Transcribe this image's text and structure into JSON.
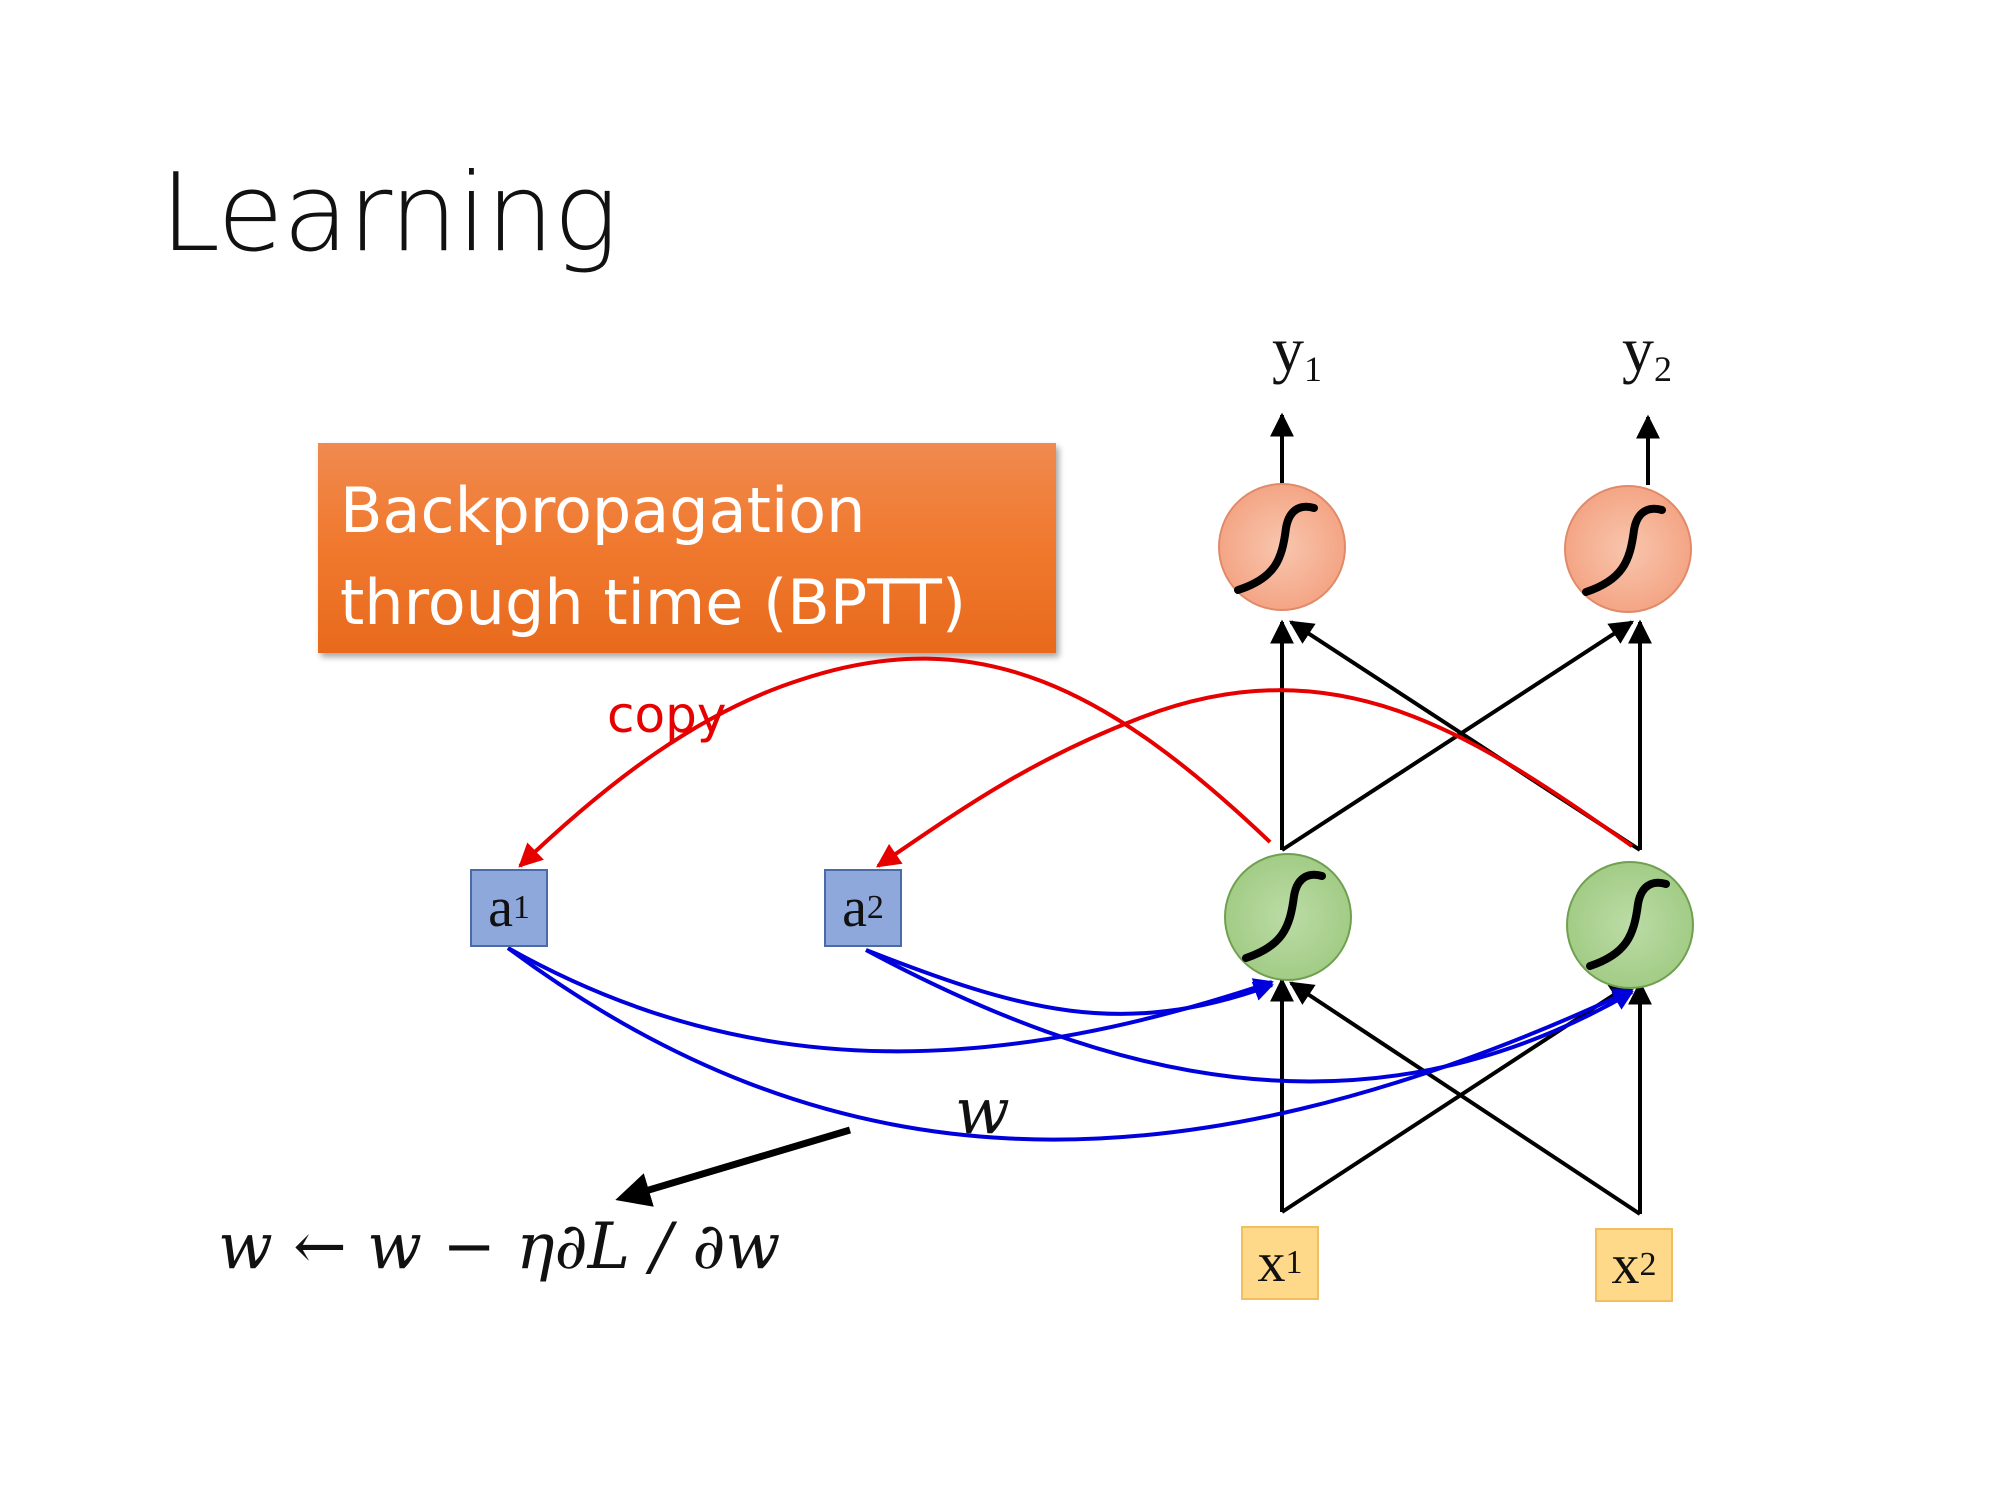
{
  "slide": {
    "title": "Learning",
    "bptt_box": {
      "line1": "Backpropagation",
      "line2": "through time (BPTT)"
    },
    "copy_label": "copy",
    "weight_label": "w",
    "update_rule": "w ← w − η∂L / ∂w"
  },
  "nodes": {
    "a1": {
      "letter": "a",
      "sub": "1"
    },
    "a2": {
      "letter": "a",
      "sub": "2"
    },
    "x1": {
      "letter": "x",
      "sub": "1"
    },
    "x2": {
      "letter": "x",
      "sub": "2"
    },
    "y1": {
      "letter": "y",
      "sub": "1"
    },
    "y2": {
      "letter": "y",
      "sub": "2"
    }
  },
  "colors": {
    "bptt_box": "#f07a30",
    "copy_arrows": "#e60000",
    "memory_weights": "#0000dd",
    "memory_cells": "#8fa8dc",
    "inputs": "#ffd98a",
    "hidden_neurons": "#a8d08d",
    "output_neurons": "#f4b097"
  }
}
